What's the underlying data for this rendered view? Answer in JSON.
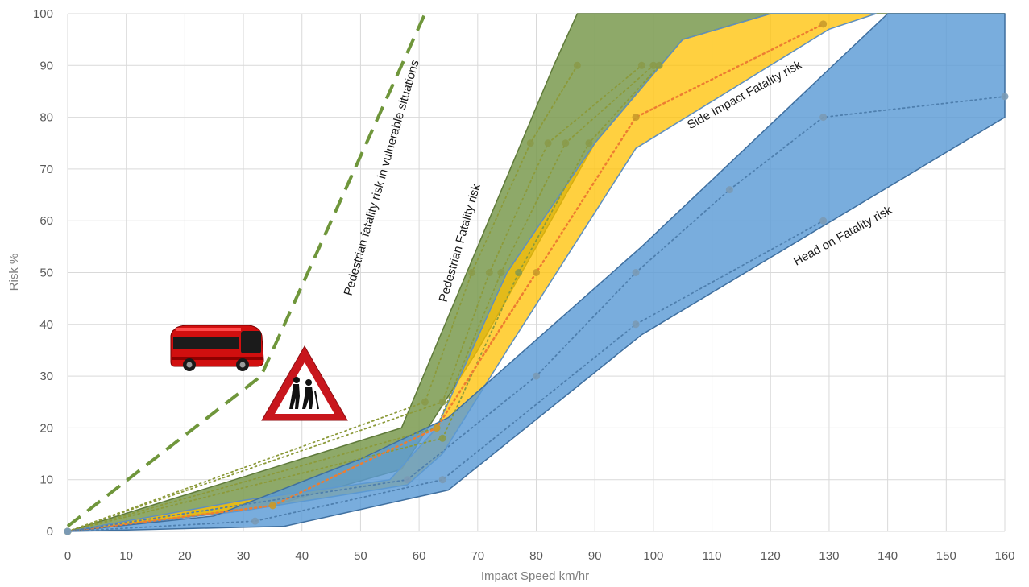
{
  "chart_data": {
    "type": "area",
    "xlabel": "Impact Speed km/hr",
    "ylabel": "Risk %",
    "xlim": [
      0,
      160
    ],
    "ylim": [
      0,
      100
    ],
    "x_ticks": [
      "0",
      "10",
      "20",
      "30",
      "40",
      "50",
      "60",
      "70",
      "80",
      "90",
      "100",
      "110",
      "120",
      "130",
      "140",
      "150",
      "160"
    ],
    "y_ticks": [
      "0",
      "10",
      "20",
      "30",
      "40",
      "50",
      "60",
      "70",
      "80",
      "90",
      "100"
    ],
    "grid": true,
    "colors": {
      "pedestrian": "#7a9a4f",
      "side_impact": "#ffc000",
      "head_on": "#5b9bd5",
      "vulnerable_line": "#6f963b",
      "side_median": "#ed7d31"
    },
    "bands": [
      {
        "key": "pedestrian",
        "upper": [
          [
            0,
            0
          ],
          [
            57,
            20
          ],
          [
            83,
            90
          ],
          [
            87,
            100
          ],
          [
            160,
            100
          ]
        ],
        "lower": [
          [
            0,
            0
          ],
          [
            35,
            5
          ],
          [
            57,
            12
          ],
          [
            70,
            35
          ],
          [
            90,
            75
          ],
          [
            105,
            95
          ],
          [
            120,
            100
          ]
        ]
      },
      {
        "key": "side_impact",
        "upper": [
          [
            0,
            0
          ],
          [
            30,
            6
          ],
          [
            55,
            10
          ],
          [
            63,
            20
          ],
          [
            75,
            50
          ],
          [
            90,
            75
          ],
          [
            105,
            95
          ],
          [
            120,
            100
          ],
          [
            138,
            100
          ]
        ],
        "lower": [
          [
            0,
            0
          ],
          [
            30,
            4
          ],
          [
            58,
            9
          ],
          [
            64,
            15
          ],
          [
            75,
            35
          ],
          [
            97,
            74
          ],
          [
            130,
            97
          ],
          [
            138,
            100
          ]
        ]
      },
      {
        "key": "head_on",
        "upper": [
          [
            0,
            0
          ],
          [
            25,
            3
          ],
          [
            50,
            14
          ],
          [
            65,
            22
          ],
          [
            98,
            55
          ],
          [
            140,
            100
          ],
          [
            160,
            100
          ]
        ],
        "lower": [
          [
            0,
            0
          ],
          [
            37,
            1
          ],
          [
            65,
            8
          ],
          [
            98,
            38
          ],
          [
            160,
            80
          ]
        ]
      }
    ],
    "series": [
      {
        "key": "pedestrian",
        "style": "dotted",
        "points": [
          [
            0,
            0
          ],
          [
            61,
            25
          ],
          [
            69,
            50
          ],
          [
            79,
            75
          ],
          [
            87,
            90
          ]
        ]
      },
      {
        "key": "pedestrian",
        "style": "dotted",
        "points": [
          [
            0,
            0
          ],
          [
            64,
            25
          ],
          [
            72,
            50
          ],
          [
            82,
            75
          ],
          [
            98,
            90
          ]
        ]
      },
      {
        "key": "pedestrian",
        "style": "dotted",
        "points": [
          [
            0,
            0
          ],
          [
            63,
            20
          ],
          [
            74,
            50
          ],
          [
            85,
            75
          ],
          [
            100,
            90
          ]
        ]
      },
      {
        "key": "pedestrian",
        "style": "dotted",
        "points": [
          [
            0,
            0
          ],
          [
            64,
            18
          ],
          [
            77,
            50
          ],
          [
            89,
            75
          ],
          [
            101,
            90
          ]
        ]
      },
      {
        "key": "side_median",
        "style": "dotted",
        "points": [
          [
            0,
            0
          ],
          [
            35,
            5
          ],
          [
            63,
            20
          ],
          [
            80,
            50
          ],
          [
            97,
            80
          ],
          [
            129,
            98
          ]
        ]
      },
      {
        "key": "head_on",
        "style": "dotted",
        "points": [
          [
            0,
            0
          ],
          [
            32,
            2
          ],
          [
            64,
            10
          ],
          [
            97,
            40
          ],
          [
            129,
            60
          ]
        ]
      },
      {
        "key": "head_on",
        "style": "dotted",
        "points": [
          [
            0,
            0
          ],
          [
            58,
            10
          ],
          [
            80,
            30
          ],
          [
            97,
            50
          ],
          [
            113,
            66
          ],
          [
            129,
            80
          ],
          [
            160,
            84
          ]
        ]
      }
    ],
    "vulnerable_line": [
      [
        0,
        1
      ],
      [
        33,
        30
      ],
      [
        61,
        100
      ]
    ],
    "annotations": {
      "vulnerable": "Pedestrian fatality risk in vulnerable situations",
      "pedestrian": "Pedestrian Fatality risk",
      "side_impact": "Side Impact Fatality risk",
      "head_on": "Head on Fatality risk"
    },
    "pictograms": [
      "red-bus",
      "elderly-crossing-warning-sign"
    ]
  }
}
